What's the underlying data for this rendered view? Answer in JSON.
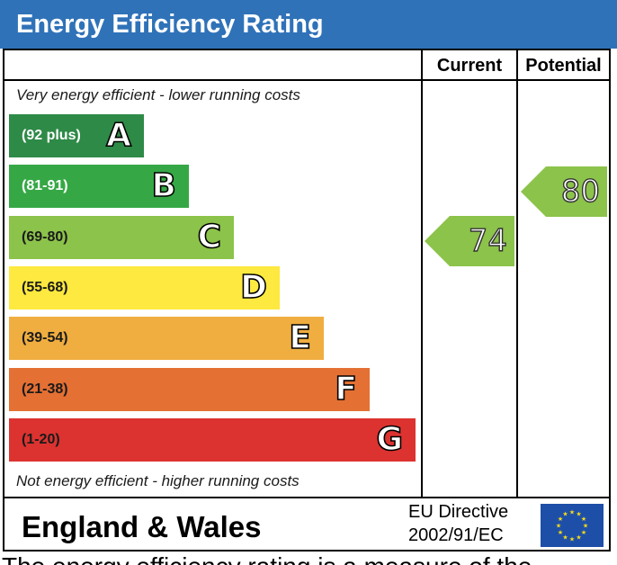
{
  "title": "Energy Efficiency Rating",
  "colors": {
    "header": "#2f72b8",
    "arrow_fill": "#8cc34a",
    "eu_flag": "#1e4fa8",
    "eu_stars": "#f7dc16"
  },
  "columns": {
    "current": "Current",
    "potential": "Potential"
  },
  "captions": {
    "top": "Very energy efficient - lower running costs",
    "bottom": "Not energy efficient - higher running costs"
  },
  "footer": {
    "region": "England & Wales",
    "directive_line1": "EU Directive",
    "directive_line2": "2002/91/EC",
    "flag_icon": "eu-flag-icon"
  },
  "overflow_text": "The energy efficiency rating is a measure of the",
  "chart_data": {
    "type": "bar",
    "title": "Energy Efficiency Rating",
    "categories": [
      "A",
      "B",
      "C",
      "D",
      "E",
      "F",
      "G"
    ],
    "bands": [
      {
        "letter": "A",
        "range": "(92 plus)",
        "color": "#2e8a47",
        "text_color": "#ffffff"
      },
      {
        "letter": "B",
        "range": "(81-91)",
        "color": "#35a845",
        "text_color": "#ffffff"
      },
      {
        "letter": "C",
        "range": "(69-80)",
        "color": "#8cc34a",
        "text_color": "#1a1a1a"
      },
      {
        "letter": "D",
        "range": "(55-68)",
        "color": "#fde93f",
        "text_color": "#1a1a1a"
      },
      {
        "letter": "E",
        "range": "(39-54)",
        "color": "#f0ae40",
        "text_color": "#1a1a1a"
      },
      {
        "letter": "F",
        "range": "(21-38)",
        "color": "#e47034",
        "text_color": "#1a1a1a"
      },
      {
        "letter": "G",
        "range": "(1-20)",
        "color": "#dc3330",
        "text_color": "#1a1a1a"
      }
    ],
    "current": {
      "value": 74,
      "band": "C"
    },
    "potential": {
      "value": 80,
      "band": "C"
    }
  }
}
